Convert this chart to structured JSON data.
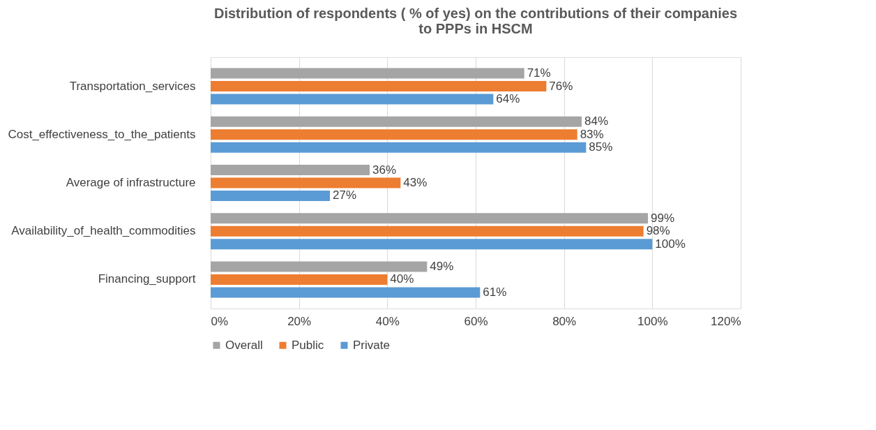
{
  "chart_data": {
    "type": "bar",
    "orientation": "horizontal",
    "title": "Distribution of respondents ( % of yes)  on the contributions of their companies to PPPs in HSCM",
    "categories": [
      "Transportation_services",
      "Cost_effectiveness_to_the_patients",
      "Average of infrastructure",
      "Availability_of_health_commodities",
      "Financing_support"
    ],
    "series": [
      {
        "name": "Overall",
        "color": "#a5a5a5",
        "values": [
          71,
          84,
          36,
          99,
          49
        ],
        "value_labels": [
          "71%",
          "84%",
          "36%",
          "99%",
          "49%"
        ]
      },
      {
        "name": "Public",
        "color": "#ed7d31",
        "values": [
          76,
          83,
          43,
          98,
          40
        ],
        "value_labels": [
          "76%",
          "83%",
          "43%",
          "98%",
          "40%"
        ]
      },
      {
        "name": "Private",
        "color": "#5b9bd5",
        "values": [
          64,
          85,
          27,
          100,
          61
        ],
        "value_labels": [
          "64%",
          "85%",
          "27%",
          "100%",
          "61%"
        ]
      }
    ],
    "xlim": [
      0,
      120
    ],
    "xticks": [
      {
        "value": 0,
        "label": "0%"
      },
      {
        "value": 20,
        "label": "20%"
      },
      {
        "value": 40,
        "label": "40%"
      },
      {
        "value": 60,
        "label": "60%"
      },
      {
        "value": 80,
        "label": "80%"
      },
      {
        "value": 100,
        "label": "100%"
      },
      {
        "value": 120,
        "label": "120%"
      }
    ],
    "grid": "x",
    "legend": "bottom"
  }
}
